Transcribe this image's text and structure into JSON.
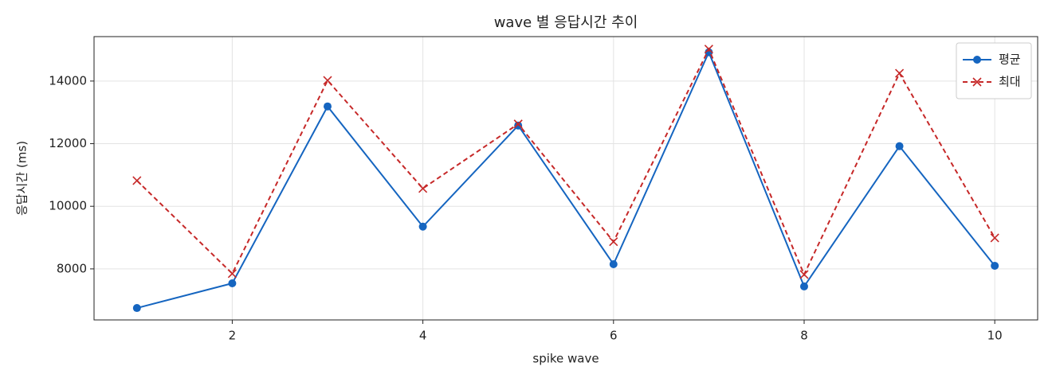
{
  "chart_data": {
    "type": "line",
    "title": "wave 별 응답시간 추이",
    "xlabel": "spike wave",
    "ylabel": "응답시간 (ms)",
    "x": [
      1,
      2,
      3,
      4,
      5,
      6,
      7,
      8,
      9,
      10
    ],
    "series": [
      {
        "name": "평균",
        "color": "#1565c0",
        "marker": "o",
        "linestyle": "solid",
        "values": [
          6750,
          7540,
          13190,
          9350,
          12580,
          8150,
          14920,
          7440,
          11920,
          8100
        ]
      },
      {
        "name": "최대",
        "color": "#c62828",
        "marker": "x",
        "linestyle": "dashed",
        "values": [
          10820,
          7850,
          14020,
          10570,
          12630,
          8870,
          15020,
          7820,
          14250,
          8990
        ]
      }
    ],
    "xlim": [
      0.55,
      10.45
    ],
    "ylim": [
      6370,
      15420
    ],
    "xticks": [
      2,
      4,
      6,
      8,
      10
    ],
    "yticks": [
      8000,
      10000,
      12000,
      14000
    ],
    "grid": true,
    "legend": "upper right"
  }
}
